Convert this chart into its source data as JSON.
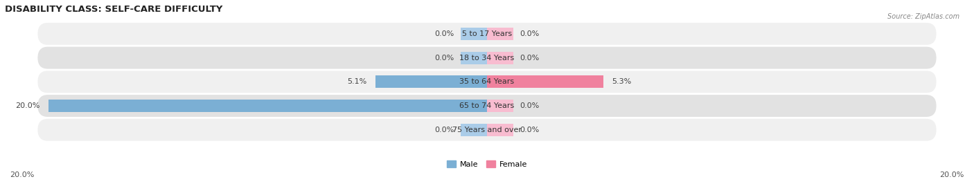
{
  "title": "DISABILITY CLASS: SELF-CARE DIFFICULTY",
  "source": "Source: ZipAtlas.com",
  "categories": [
    "5 to 17 Years",
    "18 to 34 Years",
    "35 to 64 Years",
    "65 to 74 Years",
    "75 Years and over"
  ],
  "male_values": [
    0.0,
    0.0,
    5.1,
    20.0,
    0.0
  ],
  "female_values": [
    0.0,
    0.0,
    5.3,
    0.0,
    0.0
  ],
  "male_color": "#7bafd4",
  "female_color": "#f0819e",
  "male_stub_color": "#aacce8",
  "female_stub_color": "#f8bcd0",
  "row_bg_color_odd": "#f0f0f0",
  "row_bg_color_even": "#e2e2e2",
  "max_value": 20.0,
  "axis_label_left": "20.0%",
  "axis_label_right": "20.0%",
  "title_fontsize": 9.5,
  "label_fontsize": 8,
  "value_fontsize": 8,
  "bar_height": 0.52,
  "stub_size": 1.2,
  "figsize": [
    14.06,
    2.69
  ],
  "dpi": 100
}
